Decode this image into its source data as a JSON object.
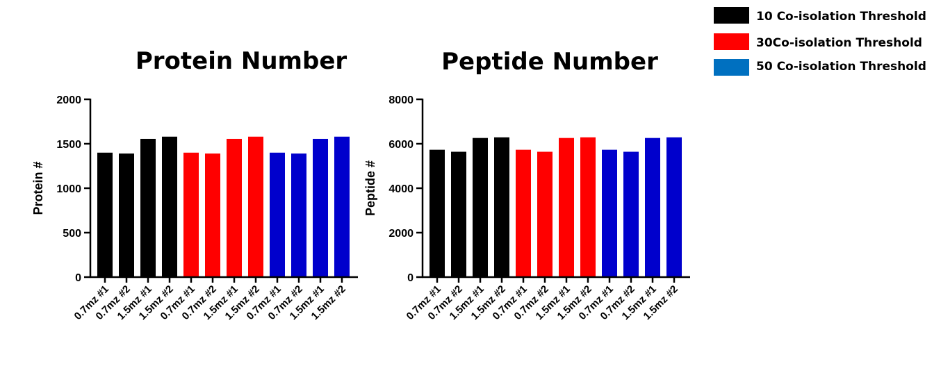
{
  "legend": [
    {
      "label": "10 Co-isolation Threshold",
      "color": "#000000"
    },
    {
      "label": "30Co-isolation Threshold",
      "color": "#FF0000"
    },
    {
      "label": "50 Co-isolation Threshold",
      "color": "#0070C0"
    }
  ],
  "chart_data": [
    {
      "type": "bar",
      "title": "Protein Number",
      "xlabel": "",
      "ylabel": "Protein #",
      "ylim": [
        0,
        2000
      ],
      "yticks": [
        0,
        500,
        1000,
        1500,
        2000
      ],
      "categories": [
        "0.7mz #1",
        "0.7mz #2",
        "1.5mz #1",
        "1.5mz #2",
        "0.7mz #1",
        "0.7mz #2",
        "1.5mz #1",
        "1.5mz #2",
        "0.7mz #1",
        "0.7mz #2",
        "1.5mz #1",
        "1.5mz #2"
      ],
      "values": [
        1400,
        1390,
        1555,
        1580,
        1400,
        1390,
        1555,
        1580,
        1400,
        1390,
        1555,
        1580
      ],
      "bar_colors": [
        "#000000",
        "#000000",
        "#000000",
        "#000000",
        "#FF0000",
        "#FF0000",
        "#FF0000",
        "#FF0000",
        "#0000CC",
        "#0000CC",
        "#0000CC",
        "#0000CC"
      ]
    },
    {
      "type": "bar",
      "title": "Peptide Number",
      "xlabel": "",
      "ylabel": "Peptide #",
      "ylim": [
        0,
        8000
      ],
      "yticks": [
        0,
        2000,
        4000,
        6000,
        8000
      ],
      "categories": [
        "0.7mz #1",
        "0.7mz #2",
        "1.5mz #1",
        "1.5mz #2",
        "0.7mz #1",
        "0.7mz #2",
        "1.5mz #1",
        "1.5mz #2",
        "0.7mz #1",
        "0.7mz #2",
        "1.5mz #1",
        "1.5mz #2"
      ],
      "values": [
        5730,
        5640,
        6260,
        6290,
        5730,
        5640,
        6260,
        6290,
        5730,
        5640,
        6260,
        6290
      ],
      "bar_colors": [
        "#000000",
        "#000000",
        "#000000",
        "#000000",
        "#FF0000",
        "#FF0000",
        "#FF0000",
        "#FF0000",
        "#0000CC",
        "#0000CC",
        "#0000CC",
        "#0000CC"
      ]
    }
  ]
}
